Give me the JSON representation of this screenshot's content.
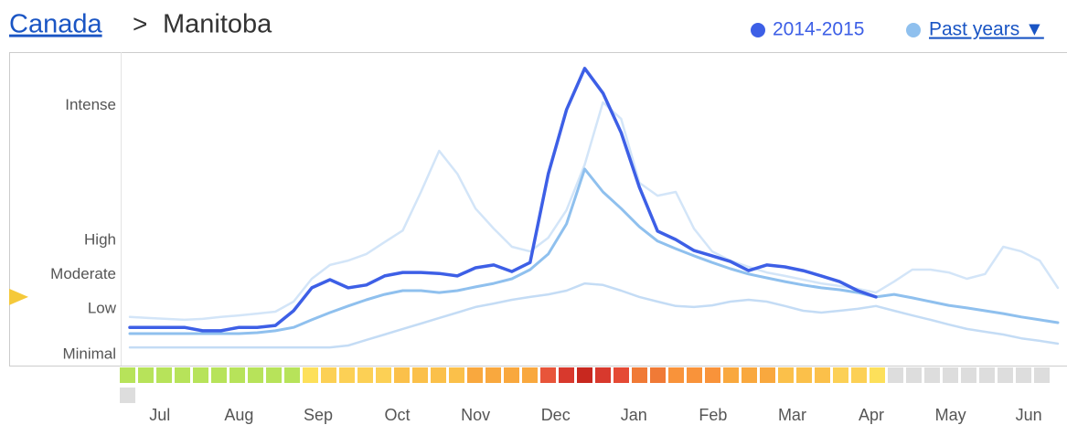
{
  "header": {
    "country": "Canada",
    "separator": ">",
    "region": "Manitoba"
  },
  "chart_data": {
    "type": "line",
    "x": [
      0,
      1,
      2,
      3,
      4,
      5,
      6,
      7,
      8,
      9,
      10,
      11,
      12,
      13,
      14,
      15,
      16,
      17,
      18,
      19,
      20,
      21,
      22,
      23,
      24,
      25,
      26,
      27,
      28,
      29,
      30,
      31,
      32,
      33,
      34,
      35,
      36,
      37,
      38,
      39,
      40,
      41,
      42,
      43,
      44,
      45,
      46,
      47,
      48,
      49,
      50,
      51
    ],
    "xlim": [
      -0.5,
      51.5
    ],
    "xticks": [
      {
        "value": 1.65,
        "label": "Jul"
      },
      {
        "value": 6.0,
        "label": "Aug"
      },
      {
        "value": 10.35,
        "label": "Sep"
      },
      {
        "value": 14.7,
        "label": "Oct"
      },
      {
        "value": 19.0,
        "label": "Nov"
      },
      {
        "value": 23.4,
        "label": "Dec"
      },
      {
        "value": 27.7,
        "label": "Jan"
      },
      {
        "value": 32.05,
        "label": "Feb"
      },
      {
        "value": 36.4,
        "label": "Mar"
      },
      {
        "value": 40.75,
        "label": "Apr"
      },
      {
        "value": 45.1,
        "label": "May"
      },
      {
        "value": 49.4,
        "label": "Jun"
      }
    ],
    "ylim": [
      0,
      100
    ],
    "yticks": [
      {
        "value": 3.5,
        "label": "Minimal"
      },
      {
        "value": 18,
        "label": "Low"
      },
      {
        "value": 29,
        "label": "Moderate"
      },
      {
        "value": 40,
        "label": "High"
      },
      {
        "value": 83,
        "label": "Intense"
      }
    ],
    "series": [
      {
        "name": "2014-2015",
        "color": "#3d5fe6",
        "values": [
          12.2,
          12.2,
          12.2,
          12.2,
          11.1,
          11.1,
          12.2,
          12.2,
          12.8,
          17.5,
          24.8,
          27.4,
          24.8,
          25.7,
          28.6,
          29.7,
          29.7,
          29.4,
          28.6,
          31.2,
          32.1,
          30.0,
          32.9,
          61.2,
          81.6,
          94.8,
          86.9,
          74.3,
          56.9,
          42.9,
          40.2,
          36.7,
          35.0,
          33.2,
          30.3,
          32.1,
          31.5,
          30.3,
          28.6,
          26.8,
          23.9,
          21.9,
          null,
          null,
          null,
          null,
          null,
          null,
          null,
          null,
          null,
          null
        ]
      },
      {
        "name": "Past years ▼",
        "color": "#8fc0ee",
        "values": [
          10.2,
          10.2,
          10.2,
          10.2,
          10.2,
          10.2,
          10.2,
          10.5,
          11.1,
          12.2,
          14.6,
          16.9,
          19.0,
          21.0,
          22.7,
          23.9,
          23.9,
          23.3,
          23.9,
          25.1,
          26.2,
          27.7,
          30.6,
          35.6,
          45.2,
          62.7,
          55.4,
          50.1,
          44.3,
          39.7,
          37.3,
          35.0,
          32.9,
          30.9,
          29.2,
          28.0,
          26.8,
          25.7,
          24.8,
          24.2,
          23.3,
          21.9,
          22.7,
          21.6,
          20.4,
          19.2,
          18.4,
          17.5,
          16.6,
          15.5,
          14.6,
          13.7
        ]
      },
      {
        "color": "#d3e5f8",
        "values": [
          15.5,
          15.2,
          14.9,
          14.6,
          14.9,
          15.5,
          16.0,
          16.6,
          17.2,
          20.4,
          27.7,
          32.1,
          33.5,
          35.6,
          39.4,
          43.1,
          55.4,
          68.5,
          61.2,
          50.1,
          43.7,
          37.9,
          36.4,
          40.8,
          49.6,
          64.1,
          84.0,
          78.7,
          58.3,
          54.2,
          55.4,
          43.7,
          36.4,
          33.5,
          31.5,
          29.7,
          28.6,
          27.4,
          26.2,
          25.4,
          24.5,
          23.3,
          26.8,
          30.6,
          30.6,
          29.7,
          27.7,
          29.2,
          37.9,
          36.4,
          33.5,
          24.8
        ]
      },
      {
        "color": "#c4dcf5",
        "values": [
          5.8,
          5.8,
          5.8,
          5.8,
          5.8,
          5.8,
          5.8,
          5.8,
          5.8,
          5.8,
          5.8,
          5.8,
          6.4,
          8.2,
          9.9,
          11.7,
          13.4,
          15.2,
          16.9,
          18.7,
          19.8,
          21.0,
          21.9,
          22.7,
          23.9,
          26.2,
          25.7,
          23.9,
          21.9,
          20.4,
          19.0,
          18.7,
          19.2,
          20.4,
          21.0,
          20.4,
          19.0,
          17.5,
          16.9,
          17.5,
          18.1,
          19.0,
          17.5,
          16.0,
          14.6,
          13.1,
          11.7,
          10.8,
          9.9,
          8.7,
          7.9,
          7.0
        ]
      }
    ],
    "week_colors": [
      "#b7e35a",
      "#b7e35a",
      "#b7e35a",
      "#b7e35a",
      "#b7e35a",
      "#b7e35a",
      "#b7e35a",
      "#b7e35a",
      "#b7e35a",
      "#b7e35a",
      "#fde05a",
      "#fcd055",
      "#fcd055",
      "#fcd055",
      "#fcd055",
      "#fbc04a",
      "#fbc04a",
      "#fbc04a",
      "#fbc04a",
      "#f9a83e",
      "#f9a83e",
      "#f9a83e",
      "#f9a83e",
      "#e8553a",
      "#d8392d",
      "#c8281f",
      "#d8392d",
      "#e54a35",
      "#f07a36",
      "#f07a36",
      "#f9933a",
      "#f9933a",
      "#f9933a",
      "#f9a83e",
      "#f9a83e",
      "#f9a83e",
      "#fbc04a",
      "#fbc04a",
      "#fbc04a",
      "#fcd055",
      "#fcd055",
      "#fde05a",
      "#dddddd",
      "#dddddd",
      "#dddddd",
      "#dddddd",
      "#dddddd",
      "#dddddd",
      "#dddddd",
      "#dddddd",
      "#dddddd",
      "#dddddd"
    ],
    "marker_color": "#f5c93a"
  }
}
